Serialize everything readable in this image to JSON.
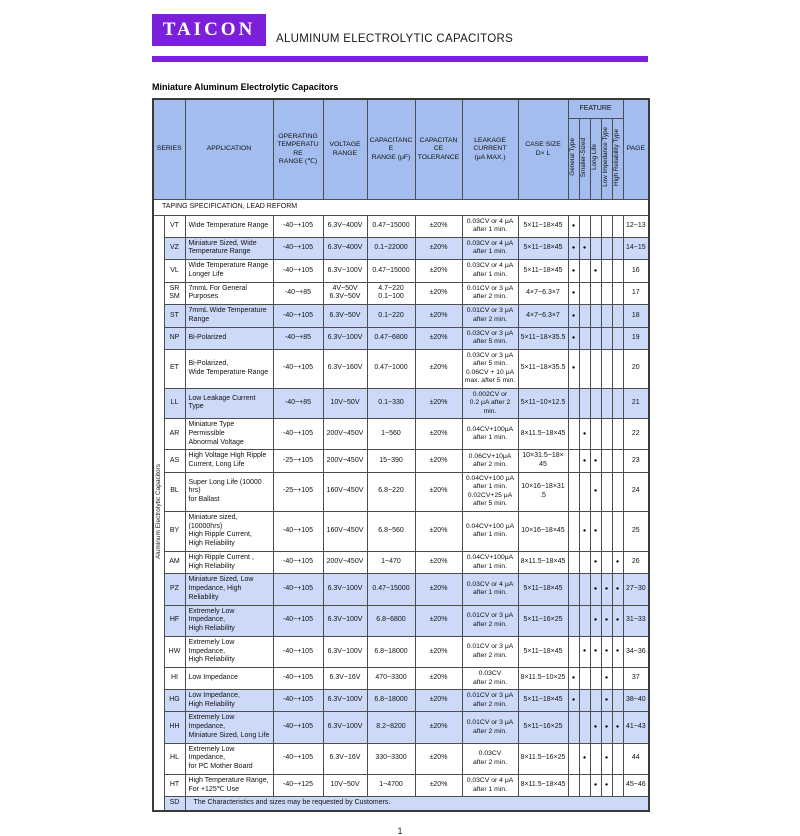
{
  "colors": {
    "accent": "#7b1fd9",
    "header_bg": "#a3bdee",
    "row_highlight_bg": "#ccd9f8",
    "border": "#4d4d4d"
  },
  "header": {
    "brand": "TAICON",
    "product_line": "ALUMINUM ELECTROLYTIC CAPACITORS"
  },
  "page_title": "Miniature Aluminum Electrolytic Capacitors",
  "page_number": "1",
  "table": {
    "side_label": "Aluminum Electrolytic Capacitors",
    "taping_note": "TAPING SPECIFICATION, LEAD REFORM",
    "feature_group_label": "FEATURE",
    "feature_columns": [
      "General  Type",
      "Smaller-Sized",
      "Long  Life",
      "Low Impedance Type",
      "High Reliability Type"
    ],
    "head_labels": {
      "series": "SERIES",
      "application": "APPLICATION",
      "temp": "OPERATING\nTEMPERATURE\nRANGE (℃)",
      "voltage": "VOLTAGE\nRANGE",
      "cap": "CAPACITANCE\nRANGE (μF)",
      "tol": "CAPACITANCE\nTOLERANCE",
      "leakage": "LEAKAGE\nCURRENT\n(μA MAX.)",
      "case": "CASE SIZE\nD× L",
      "page": "PAGE"
    },
    "rows": [
      {
        "series": "VT",
        "application": "Wide Temperature Range",
        "temp_range": "-40~+105",
        "voltage_range": "6.3V~400V",
        "cap_range": "0.47~15000",
        "tolerance": "±20%",
        "leakage": "0.03CV or 4 μA\nafter 1 min.",
        "case_size": "5×11~18×45",
        "features": [
          1,
          0,
          0,
          0,
          0
        ],
        "page": "12~13",
        "highlight": false
      },
      {
        "series": "VZ",
        "application": "Miniature Sized, Wide\nTemperature Range",
        "temp_range": "-40~+105",
        "voltage_range": "6.3V~400V",
        "cap_range": "0.1~22000",
        "tolerance": "±20%",
        "leakage": "0.03CV or 4 μA\nafter 1 min.",
        "case_size": "5×11~18×45",
        "features": [
          1,
          1,
          0,
          0,
          0
        ],
        "page": "14~15",
        "highlight": true
      },
      {
        "series": "VL",
        "application": "Wide Temperature Range\nLonger Life",
        "temp_range": "-40~+105",
        "voltage_range": "6.3V~100V",
        "cap_range": "0.47~15000",
        "tolerance": "±20%",
        "leakage": "0.03CV or 4 μA\nafter 1 min.",
        "case_size": "5×11~18×45",
        "features": [
          1,
          0,
          1,
          0,
          0
        ],
        "page": "16",
        "highlight": false
      },
      {
        "series": "SR\nSM",
        "application": "7mmL For General Purposes",
        "temp_range": "-40~+85",
        "voltage_range": "4V~50V\n6.3V~50V",
        "cap_range": "4.7~220\n0.1~100",
        "tolerance": "±20%",
        "leakage": "0.01CV or 3 μA\nafter 2 min.",
        "case_size": "4×7~6.3×7",
        "features": [
          1,
          0,
          0,
          0,
          0
        ],
        "page": "17",
        "highlight": false
      },
      {
        "series": "ST",
        "application": "7mmL Wide Temperature\nRange",
        "temp_range": "-40~+105",
        "voltage_range": "6.3V~50V",
        "cap_range": "0.1~220",
        "tolerance": "±20%",
        "leakage": "0.01CV or 3 μA\nafter 2 min.",
        "case_size": "4×7~6.3×7",
        "features": [
          1,
          0,
          0,
          0,
          0
        ],
        "page": "18",
        "highlight": true
      },
      {
        "series": "NP",
        "application": "Bi-Polarized",
        "temp_range": "-40~+85",
        "voltage_range": "6.3V~100V",
        "cap_range": "0.47~6800",
        "tolerance": "±20%",
        "leakage": "0.03CV or 3 μA\nafter 5 min.",
        "case_size": "5×11~18×35.5",
        "features": [
          1,
          0,
          0,
          0,
          0
        ],
        "page": "19",
        "highlight": true
      },
      {
        "series": "ET",
        "application": "Bi-Polarized,\nWide Temperature Range",
        "temp_range": "-40~+105",
        "voltage_range": "6.3V~160V",
        "cap_range": "0.47~1000",
        "tolerance": "±20%",
        "leakage": "0.03CV or 3 μA\nafter 5 min.\n0.06CV + 10 μA\nmax. after 5 min.",
        "case_size": "5×11~18×35.5",
        "features": [
          1,
          0,
          0,
          0,
          0
        ],
        "page": "20",
        "highlight": false
      },
      {
        "series": "LL",
        "application": "Low Leakage Current Type",
        "temp_range": "-40~+85",
        "voltage_range": "10V~50V",
        "cap_range": "0.1~330",
        "tolerance": "±20%",
        "leakage": "0.002CV or\n0.2 μA after 2\nmin.",
        "case_size": "5×11~10×12.5",
        "features": [
          0,
          0,
          0,
          0,
          0
        ],
        "page": "21",
        "highlight": true
      },
      {
        "series": "AR",
        "application": "Miniature Type Permissible\nAbnormal Voltage",
        "temp_range": "-40~+105",
        "voltage_range": "200V~450V",
        "cap_range": "1~560",
        "tolerance": "±20%",
        "leakage": "0.04CV+100μA\nafter 1 min.",
        "case_size": "8×11.5~18×45",
        "features": [
          0,
          1,
          0,
          0,
          0
        ],
        "page": "22",
        "highlight": false
      },
      {
        "series": "AS",
        "application": "High Voltage High Ripple\nCurrent, Long Life",
        "temp_range": "-25~+105",
        "voltage_range": "200V~450V",
        "cap_range": "15~390",
        "tolerance": "±20%",
        "leakage": "0.06CV+10μA\nafter 2 min.",
        "case_size": "10×31.5~18×45",
        "features": [
          0,
          1,
          1,
          0,
          0
        ],
        "page": "23",
        "highlight": false
      },
      {
        "series": "BL",
        "application": "Super Long Life (10000 hrs)\nfor Ballast",
        "temp_range": "-25~+105",
        "voltage_range": "160V~450V",
        "cap_range": "6.8~220",
        "tolerance": "±20%",
        "leakage": "0.04CV+100 μA\nafter 1 min.\n0.02CV+25 μA\nafter 5 min.",
        "case_size": "10×16~18×31.5",
        "features": [
          0,
          0,
          1,
          0,
          0
        ],
        "page": "24",
        "highlight": false
      },
      {
        "series": "BY",
        "application": "Miniature sized, (10000hrs)\nHigh Ripple Current,\nHigh Reliability",
        "temp_range": "-40~+105",
        "voltage_range": "160V~450V",
        "cap_range": "6.8~560",
        "tolerance": "±20%",
        "leakage": "0.04CV+100 μA\nafter 1 min.",
        "case_size": "10×16~18×45",
        "features": [
          0,
          1,
          1,
          0,
          0
        ],
        "page": "25",
        "highlight": false
      },
      {
        "series": "AM",
        "application": "High Ripple Current ,\nHigh Reliability",
        "temp_range": "-40~+105",
        "voltage_range": "200V~450V",
        "cap_range": "1~470",
        "tolerance": "±20%",
        "leakage": "0.04CV+100μA\nafter 1 min.",
        "case_size": "8×11.5~18×45",
        "features": [
          0,
          0,
          1,
          0,
          1
        ],
        "page": "26",
        "highlight": false
      },
      {
        "series": "PZ",
        "application": "Miniature Sized, Low\nImpedance, High Reliability",
        "temp_range": "-40~+105",
        "voltage_range": "6.3V~100V",
        "cap_range": "0.47~15000",
        "tolerance": "±20%",
        "leakage": "0.03CV or 4 μA\nafter 1 min.",
        "case_size": "5×11~18×45",
        "features": [
          0,
          0,
          1,
          1,
          1
        ],
        "page": "27~30",
        "highlight": true
      },
      {
        "series": "HF",
        "application": "Extremely Low Impedance,\nHigh Reliability",
        "temp_range": "-40~+105",
        "voltage_range": "6.3V~100V",
        "cap_range": "6.8~6800",
        "tolerance": "±20%",
        "leakage": "0.01CV or 3 μA\nafter 2 min.",
        "case_size": "5×11~16×25",
        "features": [
          0,
          0,
          1,
          1,
          1
        ],
        "page": "31~33",
        "highlight": true
      },
      {
        "series": "HW",
        "application": "Extremely Low Impedance,\nHigh Reliability",
        "temp_range": "-40~+105",
        "voltage_range": "6.3V~100V",
        "cap_range": "6.8~18000",
        "tolerance": "±20%",
        "leakage": "0.01CV or 3 μA\nafter 2 min.",
        "case_size": "5×11~18×45",
        "features": [
          0,
          1,
          1,
          1,
          1
        ],
        "page": "34~36",
        "highlight": false
      },
      {
        "series": "HI",
        "application": "Low Impedance",
        "temp_range": "-40~+105",
        "voltage_range": "6.3V~16V",
        "cap_range": "470~3300",
        "tolerance": "±20%",
        "leakage": "0.03CV\nafter 2 min.",
        "case_size": "8×11.5~10×25",
        "features": [
          1,
          0,
          0,
          1,
          0
        ],
        "page": "37",
        "highlight": false
      },
      {
        "series": "HG",
        "application": "Low Impedance,\nHigh Reliability",
        "temp_range": "-40~+105",
        "voltage_range": "6.3V~100V",
        "cap_range": "6.8~18000",
        "tolerance": "±20%",
        "leakage": "0.01CV or 3 μA\nafter 2 min.",
        "case_size": "5×11~18×45",
        "features": [
          1,
          0,
          0,
          1,
          0
        ],
        "page": "38~40",
        "highlight": true
      },
      {
        "series": "HH",
        "application": "Extremely Low Impedance,\nMiniature Sized, Long Life",
        "temp_range": "-40~+105",
        "voltage_range": "6.3V~100V",
        "cap_range": "8.2~8200",
        "tolerance": "±20%",
        "leakage": "0.01CV or 3 μA\nafter 2 min.",
        "case_size": "5×11~16×25",
        "features": [
          0,
          0,
          1,
          1,
          1
        ],
        "page": "41~43",
        "highlight": true
      },
      {
        "series": "HL",
        "application": "Extremely Low Impedance,\nfor PC Mother Board",
        "temp_range": "-40~+105",
        "voltage_range": "6.3V~16V",
        "cap_range": "330~3300",
        "tolerance": "±20%",
        "leakage": "0.03CV\nafter 2 min.",
        "case_size": "8×11.5~16×25",
        "features": [
          0,
          1,
          0,
          1,
          0
        ],
        "page": "44",
        "highlight": false
      },
      {
        "series": "HT",
        "application": "High Temperature Range,\nFor +125℃  Use",
        "temp_range": "-40~+125",
        "voltage_range": "10V~50V",
        "cap_range": "1~4700",
        "tolerance": "±20%",
        "leakage": "0.03CV or 4 μA\nafter 1 min.",
        "case_size": "8×11.5~18×45",
        "features": [
          0,
          0,
          1,
          1,
          0
        ],
        "page": "45~46",
        "highlight": false
      }
    ],
    "sd_row": {
      "series": "SD",
      "note": "The Characteristics and sizes may be requested by Customers.",
      "highlight": true
    }
  }
}
